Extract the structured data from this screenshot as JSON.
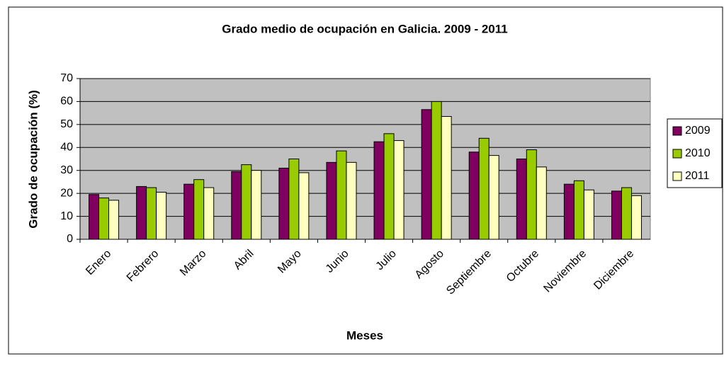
{
  "chart_data": {
    "type": "bar",
    "title": "Grado medio de ocupación en Galicia. 2009 - 2011",
    "x_label": "Meses",
    "y_label": "Grado de ocupación (%)",
    "categories": [
      "Enero",
      "Febrero",
      "Marzo",
      "Abril",
      "Mayo",
      "Junio",
      "Julio",
      "Agosto",
      "Septiembre",
      "Octubre",
      "Noviembre",
      "Diciembre"
    ],
    "series": [
      {
        "name": "2009",
        "color": "#800060",
        "values": [
          19.5,
          23,
          24,
          29.5,
          31,
          33.5,
          42.5,
          56.5,
          38,
          35,
          24,
          21
        ]
      },
      {
        "name": "2010",
        "color": "#99cc00",
        "values": [
          18,
          22.5,
          26,
          32.5,
          35,
          38.5,
          46,
          60,
          44,
          39,
          25.5,
          22.5
        ]
      },
      {
        "name": "2011",
        "color": "#ffffc0",
        "values": [
          17,
          20.5,
          22.5,
          30,
          29,
          33.5,
          43,
          53.5,
          36.5,
          31.5,
          21.5,
          19
        ]
      }
    ],
    "ylim": [
      0,
      70
    ],
    "yticks": [
      0,
      10,
      20,
      30,
      40,
      50,
      60,
      70
    ],
    "grid": true,
    "legend": "right"
  }
}
